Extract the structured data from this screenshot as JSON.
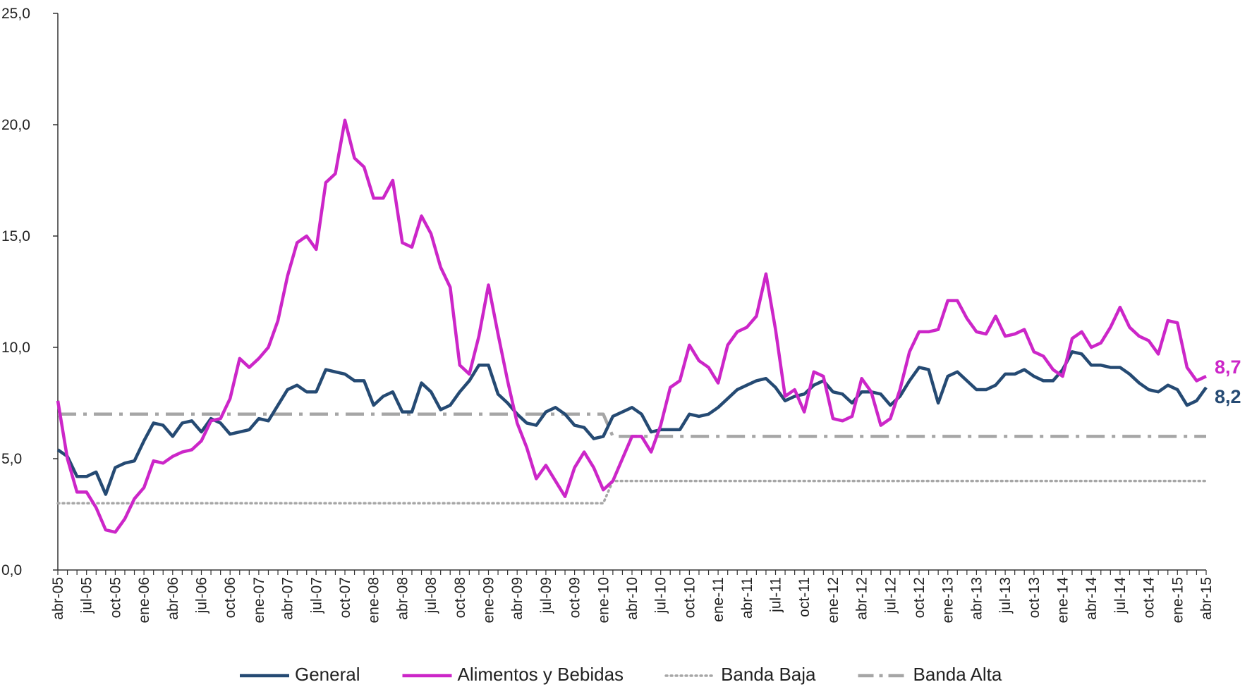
{
  "chart_data": {
    "type": "line",
    "categories": [
      "abr-05",
      null,
      null,
      "jul-05",
      null,
      null,
      "oct-05",
      null,
      null,
      "ene-06",
      null,
      null,
      "abr-06",
      null,
      null,
      "jul-06",
      null,
      null,
      "oct-06",
      null,
      null,
      "ene-07",
      null,
      null,
      "abr-07",
      null,
      null,
      "jul-07",
      null,
      null,
      "oct-07",
      null,
      null,
      "ene-08",
      null,
      null,
      "abr-08",
      null,
      null,
      "jul-08",
      null,
      null,
      "oct-08",
      null,
      null,
      "ene-09",
      null,
      null,
      "abr-09",
      null,
      null,
      "jul-09",
      null,
      null,
      "oct-09",
      null,
      null,
      "ene-10",
      null,
      null,
      "abr-10",
      null,
      null,
      "jul-10",
      null,
      null,
      "oct-10",
      null,
      null,
      "ene-11",
      null,
      null,
      "abr-11",
      null,
      null,
      "jul-11",
      null,
      null,
      "oct-11",
      null,
      null,
      "ene-12",
      null,
      null,
      "abr-12",
      null,
      null,
      "jul-12",
      null,
      null,
      "oct-12",
      null,
      null,
      "ene-13",
      null,
      null,
      "abr-13",
      null,
      null,
      "jul-13",
      null,
      null,
      "oct-13",
      null,
      null,
      "ene-14",
      null,
      null,
      "abr-14",
      null,
      null,
      "jul-14",
      null,
      null,
      "oct-14",
      null,
      null,
      "ene-15",
      null,
      null,
      "abr-15"
    ],
    "series": [
      {
        "name": "General",
        "color": "#254a73",
        "style": "solid",
        "values": [
          5.4,
          5.1,
          4.2,
          4.2,
          4.4,
          3.4,
          4.6,
          4.8,
          4.9,
          5.8,
          6.6,
          6.5,
          6.0,
          6.6,
          6.7,
          6.2,
          6.8,
          6.6,
          6.1,
          6.2,
          6.3,
          6.8,
          6.7,
          7.4,
          8.1,
          8.3,
          8.0,
          8.0,
          9.0,
          8.9,
          8.8,
          8.5,
          8.5,
          7.4,
          7.8,
          8.0,
          7.1,
          7.1,
          8.4,
          8.0,
          7.2,
          7.4,
          8.0,
          8.5,
          9.2,
          9.2,
          7.9,
          7.5,
          7.0,
          6.6,
          6.5,
          7.1,
          7.3,
          7.0,
          6.5,
          6.4,
          5.9,
          6.0,
          6.9,
          7.1,
          7.3,
          7.0,
          6.2,
          6.3,
          6.3,
          6.3,
          7.0,
          6.9,
          7.0,
          7.3,
          7.7,
          8.1,
          8.3,
          8.5,
          8.6,
          8.2,
          7.6,
          7.8,
          7.9,
          8.3,
          8.5,
          8.0,
          7.9,
          7.5,
          8.0,
          8.0,
          7.9,
          7.4,
          7.8,
          8.5,
          9.1,
          9.0,
          7.5,
          8.7,
          8.9,
          8.5,
          8.1,
          8.1,
          8.3,
          8.8,
          8.8,
          9.0,
          8.7,
          8.5,
          8.5,
          9.0,
          9.8,
          9.7,
          9.2,
          9.2,
          9.1,
          9.1,
          8.8,
          8.4,
          8.1,
          8.0,
          8.3,
          8.1,
          7.4,
          7.6,
          8.2
        ],
        "value_labels": [
          null,
          null,
          null,
          null,
          null,
          null,
          null,
          null,
          null,
          null,
          null,
          null,
          null,
          null,
          null,
          null,
          null,
          null,
          null,
          null,
          null,
          null,
          null,
          null,
          null,
          null,
          null,
          null,
          null,
          null,
          null,
          null,
          null,
          null,
          null,
          null,
          null,
          null,
          null,
          null,
          null,
          null,
          null,
          null,
          null,
          null,
          null,
          null,
          null,
          null,
          null,
          null,
          null,
          null,
          null,
          null,
          null,
          null,
          null,
          null,
          null,
          null,
          null,
          null,
          null,
          null,
          null,
          null,
          null,
          null,
          null,
          null,
          null,
          null,
          null,
          null,
          null,
          null,
          null,
          null,
          null,
          null,
          null,
          null,
          null,
          null,
          null,
          null,
          null,
          null,
          null,
          null,
          null,
          null,
          null,
          null,
          null,
          null,
          null,
          null,
          null,
          null,
          null,
          null,
          null,
          null,
          null,
          null,
          null,
          null,
          null,
          null,
          null,
          null,
          null,
          null,
          null,
          null,
          null,
          null,
          "8,2"
        ]
      },
      {
        "name": "Alimentos y Bebidas",
        "color": "#cc26c8",
        "style": "solid",
        "values": [
          7.6,
          5.0,
          3.5,
          3.5,
          2.8,
          1.8,
          1.7,
          2.3,
          3.2,
          3.7,
          4.9,
          4.8,
          5.1,
          5.3,
          5.4,
          5.8,
          6.7,
          6.8,
          7.7,
          9.5,
          9.1,
          9.5,
          10.0,
          11.2,
          13.2,
          14.7,
          15.0,
          14.4,
          17.4,
          17.8,
          20.2,
          18.5,
          18.1,
          16.7,
          16.7,
          17.5,
          14.7,
          14.5,
          15.9,
          15.1,
          13.6,
          12.7,
          9.2,
          8.8,
          10.5,
          12.8,
          10.6,
          8.5,
          6.6,
          5.5,
          4.1,
          4.7,
          4.0,
          3.3,
          4.6,
          5.3,
          4.6,
          3.6,
          4.0,
          5.0,
          6.0,
          6.0,
          5.3,
          6.5,
          8.2,
          8.5,
          10.1,
          9.4,
          9.1,
          8.4,
          10.1,
          10.7,
          10.9,
          11.4,
          13.3,
          10.8,
          7.8,
          8.1,
          7.1,
          8.9,
          8.7,
          6.8,
          6.7,
          6.9,
          8.6,
          8.0,
          6.5,
          6.8,
          8.1,
          9.8,
          10.7,
          10.7,
          10.8,
          12.1,
          12.1,
          11.3,
          10.7,
          10.6,
          11.4,
          10.5,
          10.6,
          10.8,
          9.8,
          9.6,
          9.0,
          8.7,
          10.4,
          10.7,
          10.0,
          10.2,
          10.9,
          11.8,
          10.9,
          10.5,
          10.3,
          9.7,
          11.2,
          11.1,
          9.1,
          8.5,
          8.7
        ],
        "value_labels": [
          null,
          null,
          null,
          null,
          null,
          null,
          null,
          null,
          null,
          null,
          null,
          null,
          null,
          null,
          null,
          null,
          null,
          null,
          null,
          null,
          null,
          null,
          null,
          null,
          null,
          null,
          null,
          null,
          null,
          null,
          null,
          null,
          null,
          null,
          null,
          null,
          null,
          null,
          null,
          null,
          null,
          null,
          null,
          null,
          null,
          null,
          null,
          null,
          null,
          null,
          null,
          null,
          null,
          null,
          null,
          null,
          null,
          null,
          null,
          null,
          null,
          null,
          null,
          null,
          null,
          null,
          null,
          null,
          null,
          null,
          null,
          null,
          null,
          null,
          null,
          null,
          null,
          null,
          null,
          null,
          null,
          null,
          null,
          null,
          null,
          null,
          null,
          null,
          null,
          null,
          null,
          null,
          null,
          null,
          null,
          null,
          null,
          null,
          null,
          null,
          null,
          null,
          null,
          null,
          null,
          null,
          null,
          null,
          null,
          null,
          null,
          null,
          null,
          null,
          null,
          null,
          null,
          null,
          null,
          null,
          "8,7"
        ]
      },
      {
        "name": "Banda Baja",
        "color": "#a6a6a6",
        "style": "dotted",
        "values": [
          3,
          3,
          3,
          3,
          3,
          3,
          3,
          3,
          3,
          3,
          3,
          3,
          3,
          3,
          3,
          3,
          3,
          3,
          3,
          3,
          3,
          3,
          3,
          3,
          3,
          3,
          3,
          3,
          3,
          3,
          3,
          3,
          3,
          3,
          3,
          3,
          3,
          3,
          3,
          3,
          3,
          3,
          3,
          3,
          3,
          3,
          3,
          3,
          3,
          3,
          3,
          3,
          3,
          3,
          3,
          3,
          3,
          3,
          4,
          4,
          4,
          4,
          4,
          4,
          4,
          4,
          4,
          4,
          4,
          4,
          4,
          4,
          4,
          4,
          4,
          4,
          4,
          4,
          4,
          4,
          4,
          4,
          4,
          4,
          4,
          4,
          4,
          4,
          4,
          4,
          4,
          4,
          4,
          4,
          4,
          4,
          4,
          4,
          4,
          4,
          4,
          4,
          4,
          4,
          4,
          4,
          4,
          4,
          4,
          4,
          4,
          4,
          4,
          4,
          4,
          4,
          4,
          4,
          4,
          4,
          4
        ]
      },
      {
        "name": "Banda Alta",
        "color": "#a6a6a6",
        "style": "dashdot",
        "values": [
          7,
          7,
          7,
          7,
          7,
          7,
          7,
          7,
          7,
          7,
          7,
          7,
          7,
          7,
          7,
          7,
          7,
          7,
          7,
          7,
          7,
          7,
          7,
          7,
          7,
          7,
          7,
          7,
          7,
          7,
          7,
          7,
          7,
          7,
          7,
          7,
          7,
          7,
          7,
          7,
          7,
          7,
          7,
          7,
          7,
          7,
          7,
          7,
          7,
          7,
          7,
          7,
          7,
          7,
          7,
          7,
          7,
          7,
          6,
          6,
          6,
          6,
          6,
          6,
          6,
          6,
          6,
          6,
          6,
          6,
          6,
          6,
          6,
          6,
          6,
          6,
          6,
          6,
          6,
          6,
          6,
          6,
          6,
          6,
          6,
          6,
          6,
          6,
          6,
          6,
          6,
          6,
          6,
          6,
          6,
          6,
          6,
          6,
          6,
          6,
          6,
          6,
          6,
          6,
          6,
          6,
          6,
          6,
          6,
          6,
          6,
          6,
          6,
          6,
          6,
          6,
          6,
          6,
          6,
          6,
          6
        ]
      }
    ],
    "ylim": [
      0,
      25
    ],
    "yticks": [
      {
        "value": 0,
        "label": "0,0"
      },
      {
        "value": 5,
        "label": "5,0"
      },
      {
        "value": 10,
        "label": "10,0"
      },
      {
        "value": 15,
        "label": "15,0"
      },
      {
        "value": 20,
        "label": "20,0"
      },
      {
        "value": 25,
        "label": "25,0"
      }
    ],
    "grid": false,
    "legend": "bottom"
  }
}
